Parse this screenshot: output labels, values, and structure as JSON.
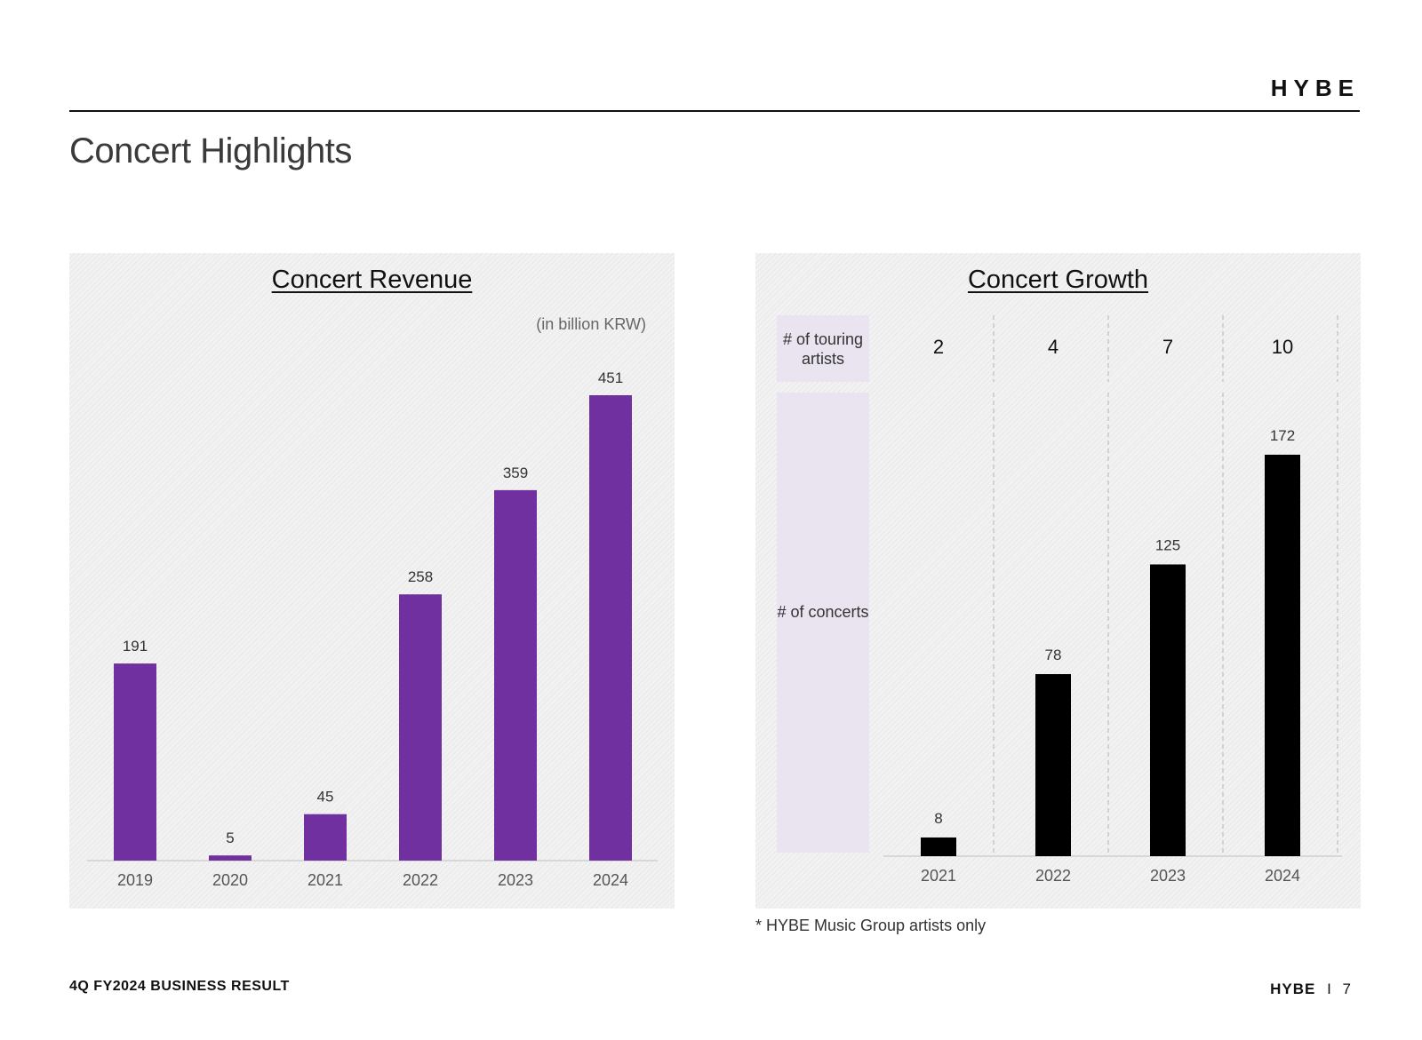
{
  "brand": "HYBE",
  "page_title": "Concert Highlights",
  "footer": {
    "left": "4Q FY2024 BUSINESS RESULT",
    "brand": "HYBE",
    "separator": "I",
    "page_number": "7"
  },
  "footnote": "* HYBE Music Group artists only",
  "colors": {
    "revenue_bar": "#7030a0",
    "concert_bar": "#000000"
  },
  "chart_data": [
    {
      "type": "bar",
      "title": "Concert Revenue",
      "unit_label": "(in billion KRW)",
      "categories": [
        "2019",
        "2020",
        "2021",
        "2022",
        "2023",
        "2024"
      ],
      "values": [
        191,
        5,
        45,
        258,
        359,
        451
      ],
      "ylim": [
        0,
        451
      ],
      "xlabel": "",
      "ylabel": "",
      "grid": false
    },
    {
      "type": "bar",
      "title": "Concert Growth",
      "categories": [
        "2021",
        "2022",
        "2023",
        "2024"
      ],
      "values": [
        8,
        78,
        125,
        172
      ],
      "ylim": [
        0,
        172
      ],
      "row_labels": {
        "touring": "# of touring artists",
        "concerts": "# of concerts"
      },
      "touring_artists": [
        2,
        4,
        7,
        10
      ],
      "grid": false
    }
  ]
}
